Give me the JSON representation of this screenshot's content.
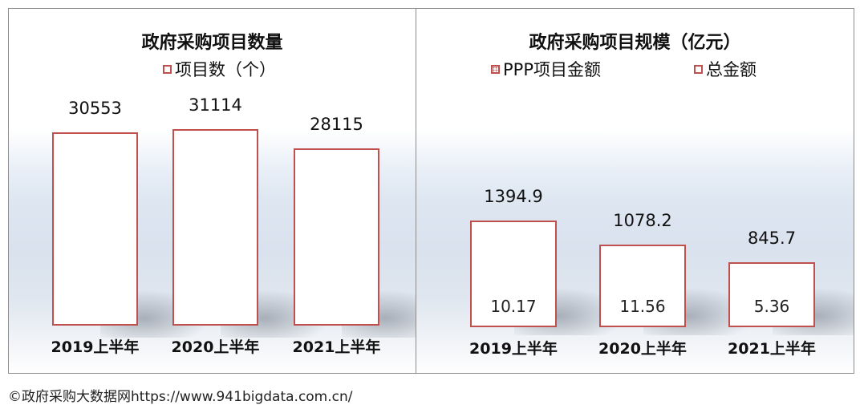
{
  "footer": "©政府采购大数据网https://www.941bigdata.com.cn/",
  "chart_data": [
    {
      "type": "bar",
      "title": "政府采购项目数量",
      "categories": [
        "2019上半年",
        "2020上半年",
        "2021上半年"
      ],
      "series": [
        {
          "name": "项目数（个）",
          "values": [
            30553,
            31114,
            28115
          ]
        }
      ],
      "value_labels": [
        "30553",
        "31114",
        "28115"
      ],
      "legend_position": "top",
      "ylim": [
        0,
        45000
      ],
      "grid": false,
      "colors": {
        "bar_border": "#c0504d",
        "bar_fill": "#ffffff"
      }
    },
    {
      "type": "bar",
      "title": "政府采购项目规模（亿元）",
      "categories": [
        "2019上半年",
        "2020上半年",
        "2021上半年"
      ],
      "series": [
        {
          "name": "PPP项目金额",
          "values": [
            10.17,
            11.56,
            5.36
          ]
        },
        {
          "name": "总金额",
          "values": [
            1394.9,
            1078.2,
            845.7
          ]
        }
      ],
      "total_labels": [
        "1394.9",
        "1078.2",
        "845.7"
      ],
      "ppp_labels": [
        "10.17",
        "11.56",
        "5.36"
      ],
      "legend_position": "top",
      "ylim": [
        0,
        4000
      ],
      "grid": false,
      "colors": {
        "bar_border": "#c0504d",
        "bar_fill": "#ffffff"
      }
    }
  ]
}
